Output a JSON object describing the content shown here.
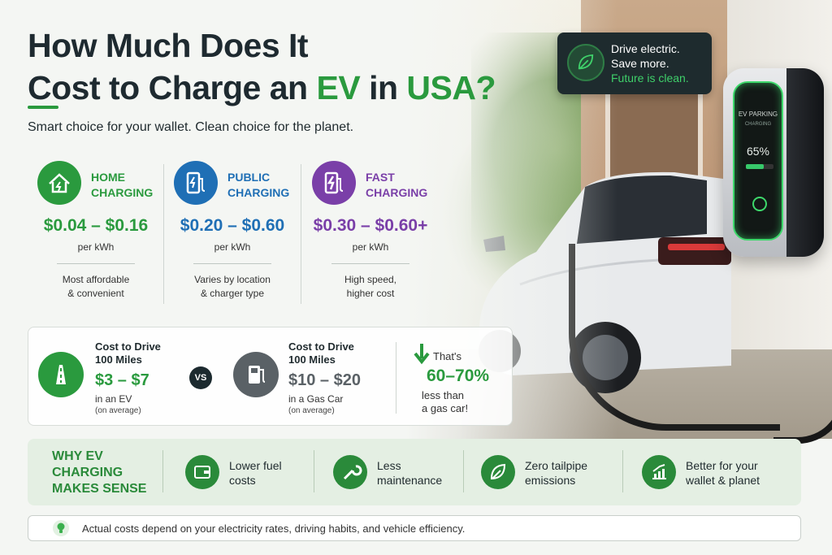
{
  "header": {
    "title_line1": "How Much Does It",
    "title_line2_pre": "Cost to Charge an ",
    "title_ev": "EV",
    "title_in": " in ",
    "title_usa": "USA?",
    "subtitle": "Smart choice for your wallet.  Clean choice for the planet."
  },
  "badge": {
    "line1": "Drive electric.",
    "line2": "Save more.",
    "line3": "Future is clean.",
    "icon": "leaf-icon"
  },
  "charger": {
    "screen_title": "EV PARKING",
    "screen_sub": "CHARGING",
    "percent": "65%",
    "fill_fraction": 0.65
  },
  "charging": [
    {
      "label1": "HOME",
      "label2": "CHARGING",
      "price": "$0.04 – $0.16",
      "unit": "per kWh",
      "note1": "Most affordable",
      "note2": "& convenient",
      "color": "#2a9a3e",
      "icon": "home-icon"
    },
    {
      "label1": "PUBLIC",
      "label2": "CHARGING",
      "price": "$0.20 – $0.60",
      "unit": "per kWh",
      "note1": "Varies by location",
      "note2": "& charger type",
      "color": "#1f6fb5",
      "icon": "charging-station-icon"
    },
    {
      "label1": "FAST",
      "label2": "CHARGING",
      "price": "$0.30 – $0.60+",
      "unit": "per kWh",
      "note1": "High speed,",
      "note2": "higher cost",
      "color": "#7a3fa8",
      "icon": "fast-charging-icon"
    }
  ],
  "compare": {
    "ev": {
      "title1": "Cost to Drive",
      "title2": "100 Miles",
      "value": "$3 – $7",
      "sub": "in an EV",
      "sub2": "(on average)",
      "color": "#2a9a3e",
      "icon": "road-icon"
    },
    "vs": "VS",
    "gas": {
      "title1": "Cost to Drive",
      "title2": "100 Miles",
      "value": "$10 – $20",
      "sub": "in a Gas Car",
      "sub2": "(on average)",
      "color": "#5a6166",
      "icon": "gas-pump-icon"
    },
    "savings": {
      "thats": "That's",
      "percent": "60–70%",
      "less1": "less than",
      "less2": "a gas car!",
      "icon": "arrow-down-icon"
    }
  },
  "why": {
    "head1": "WHY EV",
    "head2": "CHARGING",
    "head3": "MAKES SENSE",
    "items": [
      {
        "line1": "Lower fuel",
        "line2": "costs",
        "icon": "wallet-icon"
      },
      {
        "line1": "Less",
        "line2": "maintenance",
        "icon": "wrench-icon"
      },
      {
        "line1": "Zero tailpipe",
        "line2": "emissions",
        "icon": "leaf-icon"
      },
      {
        "line1": "Better for your",
        "line2": "wallet & planet",
        "icon": "chart-up-icon"
      }
    ]
  },
  "footer": {
    "text": "Actual costs depend on your electricity rates, driving habits, and vehicle efficiency.",
    "icon": "lightbulb-icon"
  }
}
